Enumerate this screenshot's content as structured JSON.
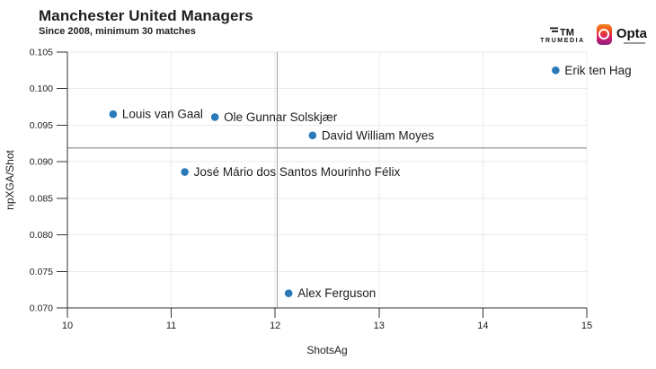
{
  "header": {
    "title": "Manchester United Managers",
    "subtitle": "Since 2008, minimum 30 matches"
  },
  "logos": {
    "trumedia_label": "TRUMEDIA",
    "opta_label": "Opta"
  },
  "chart_data": {
    "type": "scatter",
    "title": "Manchester United Managers",
    "subtitle": "Since 2008, minimum 30 matches",
    "xlabel": "ShotsAg",
    "ylabel": "npXGA/Shot",
    "xlim": [
      10,
      15
    ],
    "ylim": [
      0.07,
      0.105
    ],
    "x_ticks": [
      10,
      11,
      12,
      13,
      14,
      15
    ],
    "y_ticks": [
      0.07,
      0.075,
      0.08,
      0.085,
      0.09,
      0.095,
      0.1,
      0.105
    ],
    "y_tick_decimals": 3,
    "grid": true,
    "legend": "none",
    "reference_lines": {
      "x": 12.02,
      "y": 0.0919
    },
    "points": [
      {
        "name": "Erik ten Hag",
        "x": 14.7,
        "y": 0.1025
      },
      {
        "name": "Louis van Gaal",
        "x": 10.44,
        "y": 0.0965
      },
      {
        "name": "Ole Gunnar Solskjær",
        "x": 11.42,
        "y": 0.0961
      },
      {
        "name": "David William Moyes",
        "x": 12.36,
        "y": 0.0936
      },
      {
        "name": "José Mário dos Santos Mourinho Félix",
        "x": 11.13,
        "y": 0.0886
      },
      {
        "name": "Alex Ferguson",
        "x": 12.13,
        "y": 0.072
      }
    ],
    "colors": {
      "point": "#2a7ab9",
      "grid": "#ebebeb",
      "reference_line": "#a3a3a3",
      "axis": "#333333",
      "label_text": "#1d1d1d"
    }
  }
}
